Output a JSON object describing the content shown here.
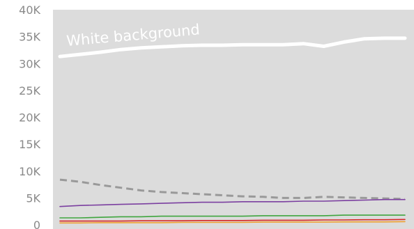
{
  "chart_data": {
    "type": "line",
    "title": "",
    "xlabel": "",
    "ylabel": "",
    "ylim": [
      0,
      40000
    ],
    "y_ticks": [
      0,
      5000,
      10000,
      15000,
      20000,
      25000,
      30000,
      35000,
      40000
    ],
    "y_tick_labels": [
      "0",
      "5K",
      "10K",
      "15K",
      "20K",
      "25K",
      "30K",
      "35K",
      "40K"
    ],
    "grid": false,
    "legend": "none",
    "plot_background": "#dcdcdc",
    "annotation": {
      "text": "White background",
      "color": "#ffffff"
    },
    "series": [
      {
        "color": "#ffffff",
        "style": "solid",
        "width": "thick",
        "values": [
          31300,
          31700,
          32100,
          32600,
          32900,
          33100,
          33300,
          33400,
          33400,
          33500,
          33500,
          33500,
          33700,
          33200,
          34000,
          34600,
          34700,
          34700
        ]
      },
      {
        "color": "#999999",
        "style": "dashed",
        "values": [
          8400,
          8000,
          7400,
          6900,
          6400,
          6100,
          5900,
          5700,
          5500,
          5300,
          5200,
          5000,
          5000,
          5200,
          5100,
          5000,
          4900,
          4800
        ]
      },
      {
        "color": "#7b3fa0",
        "style": "solid",
        "values": [
          3400,
          3600,
          3700,
          3800,
          3900,
          4000,
          4100,
          4200,
          4200,
          4300,
          4300,
          4300,
          4400,
          4400,
          4500,
          4600,
          4700,
          4700
        ]
      },
      {
        "color": "#3ea53e",
        "style": "solid",
        "values": [
          1300,
          1300,
          1400,
          1500,
          1500,
          1600,
          1600,
          1600,
          1600,
          1600,
          1700,
          1700,
          1700,
          1700,
          1800,
          1800,
          1800,
          1800
        ]
      },
      {
        "color": "#d62728",
        "style": "solid",
        "values": [
          700,
          700,
          700,
          700,
          750,
          750,
          750,
          800,
          800,
          800,
          850,
          850,
          850,
          900,
          900,
          950,
          950,
          1000
        ]
      },
      {
        "color": "#f0a030",
        "style": "solid",
        "values": [
          350,
          350,
          400,
          400,
          400,
          400,
          450,
          450,
          450,
          450,
          500,
          500,
          500,
          500,
          550,
          550,
          550,
          600
        ]
      }
    ]
  }
}
